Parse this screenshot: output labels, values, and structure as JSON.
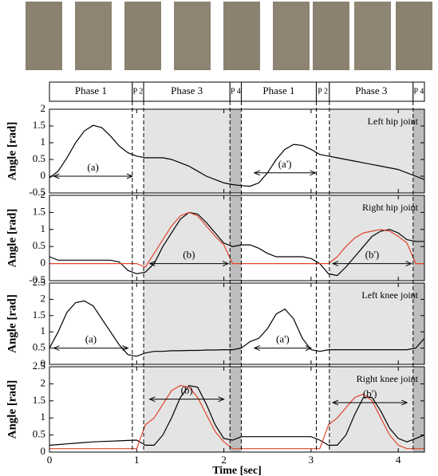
{
  "phases": [
    {
      "label": "Phase 1",
      "start": 0,
      "end": 0.95,
      "color": "#ffffff"
    },
    {
      "label": "P 2",
      "start": 0.95,
      "end": 1.08,
      "color": "#ffffff"
    },
    {
      "label": "Phase 3",
      "start": 1.08,
      "end": 2.07,
      "color": "#e4e4e4"
    },
    {
      "label": "P 4",
      "start": 2.07,
      "end": 2.2,
      "color": "#bdbdbd"
    },
    {
      "label": "Phase 1",
      "start": 2.2,
      "end": 3.06,
      "color": "#ffffff"
    },
    {
      "label": "P 2",
      "start": 3.06,
      "end": 3.21,
      "color": "#ffffff"
    },
    {
      "label": "Phase 3",
      "start": 3.21,
      "end": 4.17,
      "color": "#e4e4e4"
    },
    {
      "label": "P 4",
      "start": 4.17,
      "end": 4.3,
      "color": "#bdbdbd"
    }
  ],
  "chart_data": [
    {
      "type": "line",
      "title": "Left hip joint",
      "ylabel": "Angle [rad]",
      "x": [
        0,
        0.1,
        0.2,
        0.3,
        0.4,
        0.5,
        0.6,
        0.7,
        0.8,
        0.9,
        1,
        1.1,
        1.2,
        1.3,
        1.4,
        1.5,
        1.6,
        1.7,
        1.8,
        1.9,
        2,
        2.1,
        2.2,
        2.3,
        2.4,
        2.5,
        2.6,
        2.7,
        2.8,
        2.9,
        3,
        3.1,
        3.2,
        3.3,
        3.4,
        3.5,
        3.6,
        3.7,
        3.8,
        3.9,
        4,
        4.1,
        4.2,
        4.3
      ],
      "series": [
        {
          "color": "#000000",
          "values": [
            -0.05,
            0.15,
            0.55,
            1.0,
            1.35,
            1.52,
            1.45,
            1.2,
            0.9,
            0.7,
            0.6,
            0.55,
            0.55,
            0.55,
            0.5,
            0.4,
            0.3,
            0.15,
            0.0,
            -0.1,
            -0.2,
            -0.25,
            -0.28,
            -0.3,
            -0.2,
            0.1,
            0.5,
            0.8,
            0.95,
            0.92,
            0.8,
            0.65,
            0.6,
            0.55,
            0.5,
            0.45,
            0.4,
            0.35,
            0.3,
            0.25,
            0.2,
            0.1,
            0.0,
            -0.1
          ]
        }
      ],
      "annotations": [
        {
          "text": "(a)",
          "x": [
            0.05,
            0.95
          ],
          "y": 0.0
        },
        {
          "text": "(a')",
          "x": [
            2.35,
            3.05
          ],
          "y": 0.1
        }
      ],
      "xlim": [
        0,
        4.3
      ],
      "xticks": [
        0,
        1,
        2,
        3,
        4
      ],
      "ylim": [
        -0.5,
        2
      ],
      "yticks": [
        -0.5,
        0,
        0.5,
        1,
        1.5,
        2
      ]
    },
    {
      "type": "line",
      "title": "Right hip joint",
      "ylabel": "Angle [rad]",
      "x": [
        0,
        0.1,
        0.2,
        0.3,
        0.4,
        0.5,
        0.6,
        0.7,
        0.8,
        0.9,
        1,
        1.1,
        1.2,
        1.3,
        1.4,
        1.5,
        1.6,
        1.7,
        1.8,
        1.9,
        2,
        2.1,
        2.2,
        2.3,
        2.4,
        2.5,
        2.6,
        2.7,
        2.8,
        2.9,
        3,
        3.1,
        3.2,
        3.3,
        3.4,
        3.5,
        3.6,
        3.7,
        3.8,
        3.9,
        4,
        4.1,
        4.2,
        4.3
      ],
      "series": [
        {
          "color": "#000000",
          "values": [
            0.2,
            0.1,
            0.1,
            0.1,
            0.1,
            0.1,
            0.1,
            0.1,
            0.05,
            -0.2,
            -0.3,
            -0.25,
            0.0,
            0.5,
            0.9,
            1.3,
            1.5,
            1.45,
            1.2,
            0.9,
            0.6,
            0.5,
            0.55,
            0.55,
            0.45,
            0.3,
            0.2,
            0.2,
            0.2,
            0.2,
            0.15,
            0.0,
            -0.3,
            -0.35,
            -0.1,
            0.2,
            0.5,
            0.8,
            0.95,
            1.0,
            0.9,
            0.7,
            0.65,
            0.65
          ]
        },
        {
          "color": "#e0452a",
          "values": [
            0.0,
            0.0,
            0.0,
            0.0,
            0.0,
            0.0,
            0.0,
            0.0,
            0.0,
            0.0,
            0.0,
            -0.1,
            0.3,
            0.7,
            1.1,
            1.4,
            1.5,
            1.4,
            1.1,
            0.8,
            0.55,
            0.0,
            0.0,
            0.0,
            0.0,
            0.0,
            0.0,
            0.0,
            0.0,
            0.0,
            0.0,
            0.0,
            0.0,
            0.2,
            0.5,
            0.75,
            0.9,
            0.95,
            1.0,
            0.95,
            0.8,
            0.6,
            0.0,
            0.0
          ]
        }
      ],
      "annotations": [
        {
          "text": "(b)",
          "x": [
            1.15,
            2.05
          ],
          "y": 0.0
        },
        {
          "text": "(b')",
          "x": [
            3.25,
            4.15
          ],
          "y": 0.0
        }
      ],
      "xlim": [
        0,
        4.3
      ],
      "xticks": [
        0,
        1,
        2,
        3,
        4
      ],
      "ylim": [
        -0.5,
        2
      ],
      "yticks": [
        -0.5,
        0,
        0.5,
        1,
        1.5,
        2
      ]
    },
    {
      "type": "line",
      "title": "Left knee joint",
      "ylabel": "Angle [rad]",
      "x": [
        0,
        0.1,
        0.2,
        0.3,
        0.4,
        0.5,
        0.6,
        0.7,
        0.8,
        0.9,
        1,
        1.1,
        1.2,
        1.3,
        1.4,
        1.5,
        1.6,
        1.7,
        1.8,
        1.9,
        2,
        2.1,
        2.2,
        2.3,
        2.4,
        2.5,
        2.6,
        2.7,
        2.8,
        2.9,
        3,
        3.1,
        3.2,
        3.3,
        3.4,
        3.5,
        3.6,
        3.7,
        3.8,
        3.9,
        4,
        4.1,
        4.2,
        4.3
      ],
      "series": [
        {
          "color": "#000000",
          "values": [
            0.5,
            1.0,
            1.6,
            1.9,
            1.95,
            1.8,
            1.4,
            1.0,
            0.6,
            0.3,
            0.25,
            0.35,
            0.4,
            0.4,
            0.42,
            0.42,
            0.43,
            0.43,
            0.44,
            0.44,
            0.45,
            0.45,
            0.5,
            0.7,
            0.8,
            1.1,
            1.55,
            1.7,
            1.4,
            0.8,
            0.45,
            0.4,
            0.45,
            0.45,
            0.45,
            0.45,
            0.45,
            0.45,
            0.45,
            0.45,
            0.45,
            0.45,
            0.5,
            0.8
          ]
        }
      ],
      "annotations": [
        {
          "text": "(a)",
          "x": [
            0.05,
            0.9
          ],
          "y": 0.5
        },
        {
          "text": "(a')",
          "x": [
            2.35,
            3.0
          ],
          "y": 0.5
        }
      ],
      "xlim": [
        0,
        4.3
      ],
      "xticks": [
        0,
        1,
        2,
        3,
        4
      ],
      "ylim": [
        0,
        2.5
      ],
      "yticks": [
        0,
        0.5,
        1,
        1.5,
        2,
        2.5
      ]
    },
    {
      "type": "line",
      "title": "Right knee joint",
      "ylabel": "Angle [rad]",
      "xlabel": "Time [sec]",
      "x": [
        0,
        0.1,
        0.2,
        0.3,
        0.4,
        0.5,
        0.6,
        0.7,
        0.8,
        0.9,
        1,
        1.1,
        1.2,
        1.3,
        1.4,
        1.5,
        1.6,
        1.7,
        1.8,
        1.9,
        2,
        2.1,
        2.2,
        2.3,
        2.4,
        2.5,
        2.6,
        2.7,
        2.8,
        2.9,
        3,
        3.1,
        3.2,
        3.3,
        3.4,
        3.5,
        3.6,
        3.7,
        3.8,
        3.9,
        4,
        4.1,
        4.2,
        4.3
      ],
      "series": [
        {
          "color": "#000000",
          "values": [
            0.2,
            0.22,
            0.24,
            0.26,
            0.28,
            0.3,
            0.31,
            0.32,
            0.33,
            0.34,
            0.35,
            0.2,
            0.2,
            0.5,
            1.0,
            1.6,
            1.95,
            1.9,
            1.4,
            0.8,
            0.4,
            0.35,
            0.45,
            0.45,
            0.45,
            0.45,
            0.45,
            0.45,
            0.45,
            0.45,
            0.45,
            0.35,
            0.2,
            0.2,
            0.5,
            1.1,
            1.6,
            1.6,
            1.2,
            0.7,
            0.4,
            0.3,
            0.4,
            0.5
          ]
        },
        {
          "color": "#e0452a",
          "values": [
            0.1,
            0.1,
            0.1,
            0.1,
            0.1,
            0.1,
            0.1,
            0.1,
            0.1,
            0.1,
            0.1,
            0.8,
            1.0,
            1.4,
            1.8,
            1.95,
            1.9,
            1.6,
            1.1,
            0.6,
            0.3,
            0.1,
            0.1,
            0.1,
            0.1,
            0.1,
            0.1,
            0.1,
            0.1,
            0.1,
            0.1,
            0.1,
            0.8,
            1.0,
            1.3,
            1.6,
            1.7,
            1.5,
            1.0,
            0.5,
            0.2,
            0.1,
            0.1,
            0.1
          ]
        }
      ],
      "annotations": [
        {
          "text": "(b)",
          "x": [
            1.15,
            2.0
          ],
          "y": 1.55
        },
        {
          "text": "(b')",
          "x": [
            3.25,
            4.1
          ],
          "y": 1.45
        }
      ],
      "xlim": [
        0,
        4.3
      ],
      "xticks": [
        0,
        1,
        2,
        3,
        4
      ],
      "ylim": [
        0,
        2.5
      ],
      "yticks": [
        0,
        0.5,
        1,
        1.5,
        2,
        2.5
      ]
    }
  ]
}
